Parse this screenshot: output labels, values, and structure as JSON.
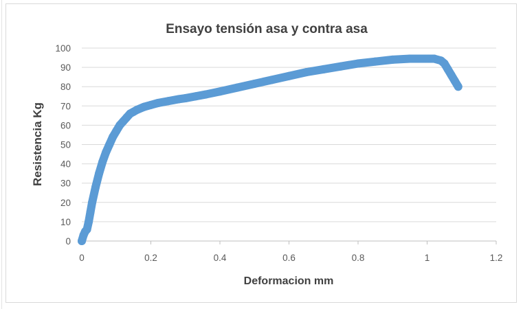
{
  "chart_data": {
    "type": "scatter",
    "title": "Ensayo tensión asa y contra asa",
    "xlabel": "Deformacion mm",
    "ylabel": "Resistencia  Kg",
    "xlim": [
      0,
      1.2
    ],
    "ylim": [
      0,
      100
    ],
    "x_ticks": [
      0,
      0.2,
      0.4,
      0.6,
      0.8,
      1,
      1.2
    ],
    "x_tick_labels": [
      "0",
      "0.2",
      "0.4",
      "0.6",
      "0.8",
      "1",
      "1.2"
    ],
    "y_ticks": [
      0,
      10,
      20,
      30,
      40,
      50,
      60,
      70,
      80,
      90,
      100
    ],
    "y_tick_labels": [
      "0",
      "10",
      "20",
      "30",
      "40",
      "50",
      "60",
      "70",
      "80",
      "90",
      "100"
    ],
    "grid": "horizontal",
    "legend": "none",
    "series_color": "#5b9bd5",
    "series": [
      {
        "x": [
          0.0,
          0.005,
          0.01,
          0.015,
          0.02,
          0.025,
          0.03,
          0.04,
          0.05,
          0.06,
          0.07,
          0.08,
          0.09,
          0.1,
          0.11,
          0.12,
          0.13,
          0.14,
          0.15,
          0.16,
          0.18,
          0.2,
          0.22,
          0.25,
          0.28,
          0.3,
          0.33,
          0.36,
          0.4,
          0.45,
          0.5,
          0.55,
          0.6,
          0.65,
          0.7,
          0.75,
          0.8,
          0.85,
          0.9,
          0.95,
          1.0,
          1.02,
          1.04,
          1.05,
          1.06,
          1.07,
          1.08,
          1.09
        ],
        "y": [
          0,
          3,
          5,
          6,
          10,
          15,
          20,
          28,
          35,
          41,
          46,
          50,
          54,
          57,
          60,
          62,
          64,
          66,
          67,
          68,
          69.5,
          70.5,
          71.5,
          72.5,
          73.5,
          74,
          75,
          76,
          77.5,
          79.5,
          81.5,
          83.5,
          85.5,
          87.5,
          89,
          90.5,
          92,
          93,
          94,
          94.5,
          94.5,
          94.5,
          93.5,
          92,
          89,
          86,
          83,
          80
        ]
      }
    ]
  }
}
